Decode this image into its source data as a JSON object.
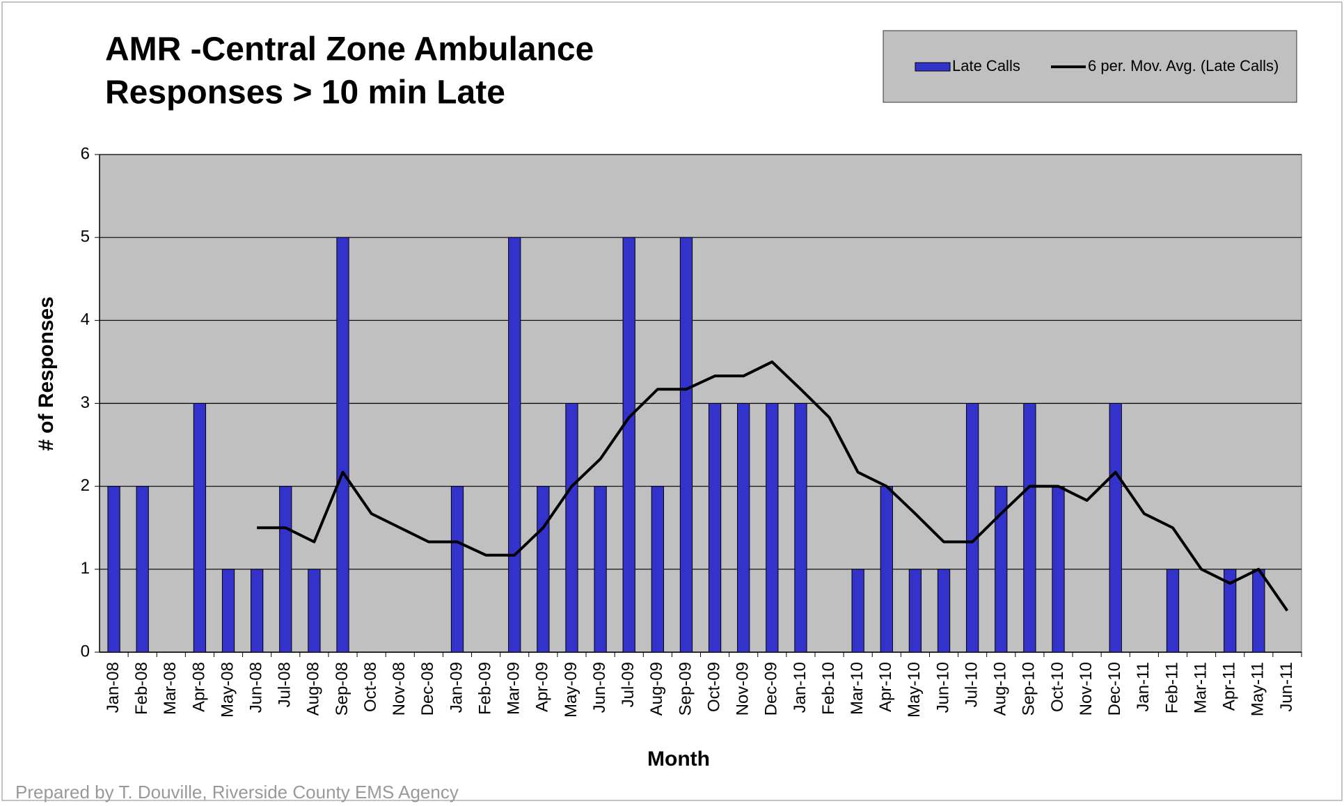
{
  "chart_data": {
    "type": "bar",
    "title": [
      "AMR -Central Zone Ambulance",
      "Responses > 10 min Late"
    ],
    "x_label": "Month",
    "y_label": "# of Responses",
    "footer": "Prepared by T. Douville, Riverside  County EMS Agency",
    "categories": [
      "Jan-08",
      "Feb-08",
      "Mar-08",
      "Apr-08",
      "May-08",
      "Jun-08",
      "Jul-08",
      "Aug-08",
      "Sep-08",
      "Oct-08",
      "Nov-08",
      "Dec-08",
      "Jan-09",
      "Feb-09",
      "Mar-09",
      "Apr-09",
      "May-09",
      "Jun-09",
      "Jul-09",
      "Aug-09",
      "Sep-09",
      "Oct-09",
      "Nov-09",
      "Dec-09",
      "Jan-10",
      "Feb-10",
      "Mar-10",
      "Apr-10",
      "May-10",
      "Jun-10",
      "Jul-10",
      "Aug-10",
      "Sep-10",
      "Oct-10",
      "Nov-10",
      "Dec-10",
      "Jan-11",
      "Feb-11",
      "Mar-11",
      "Apr-11",
      "May-11",
      "Jun-11"
    ],
    "series": [
      {
        "name": "Late Calls",
        "type": "bar",
        "color": "#3333cc",
        "values": [
          2,
          2,
          0,
          3,
          1,
          1,
          2,
          1,
          5,
          0,
          0,
          0,
          2,
          0,
          5,
          2,
          3,
          2,
          5,
          2,
          5,
          3,
          3,
          3,
          3,
          0,
          1,
          2,
          1,
          1,
          3,
          2,
          3,
          2,
          0,
          3,
          0,
          1,
          0,
          1,
          1,
          0
        ]
      },
      {
        "name": "6 per. Mov. Avg. (Late Calls)",
        "type": "line",
        "color": "#000000",
        "values": [
          null,
          null,
          null,
          null,
          null,
          1.5,
          1.5,
          1.33,
          2.17,
          1.67,
          1.5,
          1.33,
          1.33,
          1.17,
          1.17,
          1.5,
          2,
          2.33,
          2.83,
          3.17,
          3.17,
          3.33,
          3.33,
          3.5,
          3.17,
          2.83,
          2.17,
          2,
          1.67,
          1.33,
          1.33,
          1.67,
          2,
          2,
          1.83,
          2.17,
          1.67,
          1.5,
          1,
          0.83,
          1,
          0.5
        ]
      }
    ],
    "ylim": [
      0,
      6
    ],
    "yticks": [
      0,
      1,
      2,
      3,
      4,
      5,
      6
    ],
    "grid": true,
    "legend": "top-right",
    "plot_background": "#c0c0c0"
  }
}
